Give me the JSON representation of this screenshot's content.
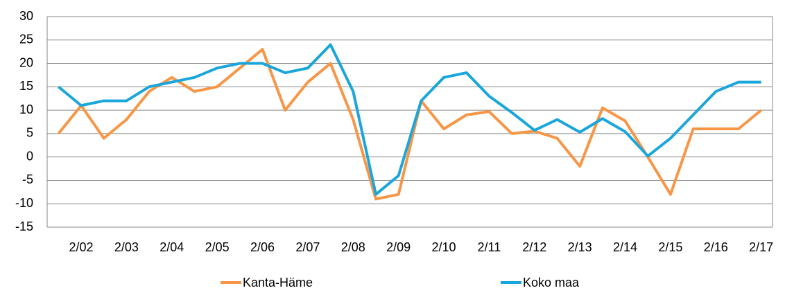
{
  "chart_data": {
    "type": "line",
    "categories": [
      null,
      "2/02",
      null,
      "2/03",
      null,
      "2/04",
      null,
      "2/05",
      null,
      "2/06",
      null,
      "2/07",
      null,
      "2/08",
      null,
      "2/09",
      null,
      "2/10",
      null,
      "2/11",
      null,
      "2/12",
      null,
      "2/13",
      null,
      "2/14",
      null,
      "2/15",
      null,
      "2/16",
      null,
      "2/17"
    ],
    "series": [
      {
        "name": "Kanta-Häme",
        "color": "#f79646",
        "values": [
          5,
          11,
          4,
          8,
          14,
          17,
          14,
          15,
          19,
          23,
          10,
          16,
          20,
          8,
          -9,
          -8,
          12,
          6,
          9,
          9.7,
          5,
          5.5,
          4,
          -2,
          10.5,
          7.7,
          0,
          -8,
          6,
          6,
          6,
          10
        ]
      },
      {
        "name": "Koko maa",
        "color": "#1ba6db",
        "values": [
          15,
          11,
          12,
          12,
          15,
          16,
          17,
          19,
          20,
          20,
          18,
          19,
          24,
          14,
          -8,
          -4,
          12,
          17,
          18,
          13,
          9.5,
          5.7,
          8,
          5.3,
          8.2,
          5.4,
          0.2,
          4,
          9,
          14,
          16,
          16
        ]
      }
    ],
    "ylim": [
      -15,
      30
    ],
    "yticks": [
      -15,
      -10,
      -5,
      0,
      5,
      10,
      15,
      20,
      25,
      30
    ],
    "grid": true,
    "legend": "bottom"
  }
}
